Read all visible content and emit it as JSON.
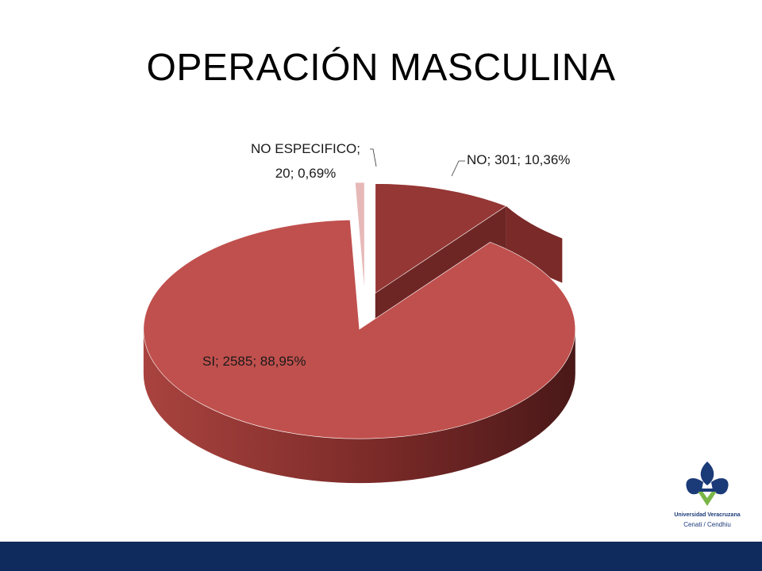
{
  "slide": {
    "title": "OPERACIÓN MASCULINA",
    "footer_color": "#0f2a5c"
  },
  "logo": {
    "line1": "Universidad Veracruzana",
    "line2": "Cenati / Cendhiu",
    "colors": {
      "blue": "#1b3a78",
      "green": "#7ab648"
    }
  },
  "chart_data": {
    "type": "pie",
    "style": "3d-exploded",
    "title": "",
    "slices": [
      {
        "category": "NO",
        "value": 301,
        "percent": "10,36%",
        "label": "NO; 301; 10,36%",
        "color": "#953735",
        "side": "#6e2625"
      },
      {
        "category": "SI",
        "value": 2585,
        "percent": "88,95%",
        "label": "SI; 2585; 88,95%",
        "color": "#c0504d",
        "side": "#8a3431"
      },
      {
        "category": "NO ESPECIFICO",
        "value": 20,
        "percent": "0,69%",
        "label_lines": [
          "NO ESPECIFICO;",
          "20; 0,69%"
        ],
        "color": "#e6b9b8",
        "side": "#b58786"
      }
    ],
    "legend": "none"
  }
}
